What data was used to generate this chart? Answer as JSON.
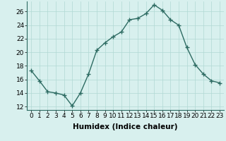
{
  "x": [
    0,
    1,
    2,
    3,
    4,
    5,
    6,
    7,
    8,
    9,
    10,
    11,
    12,
    13,
    14,
    15,
    16,
    17,
    18,
    19,
    20,
    21,
    22,
    23
  ],
  "y": [
    17.3,
    15.8,
    14.2,
    14.0,
    13.7,
    12.1,
    14.0,
    16.8,
    20.3,
    21.4,
    22.3,
    23.0,
    24.8,
    25.0,
    25.7,
    27.0,
    26.2,
    24.8,
    24.0,
    20.7,
    18.2,
    16.8,
    15.8,
    15.5
  ],
  "line_color": "#2d6b62",
  "marker": "+",
  "marker_size": 4,
  "bg_color": "#d8f0ee",
  "grid_color": "#b0d8d4",
  "xlabel": "Humidex (Indice chaleur)",
  "ylim": [
    11.5,
    27.5
  ],
  "xlim": [
    -0.5,
    23.5
  ],
  "yticks": [
    12,
    14,
    16,
    18,
    20,
    22,
    24,
    26
  ],
  "xticks": [
    0,
    1,
    2,
    3,
    4,
    5,
    6,
    7,
    8,
    9,
    10,
    11,
    12,
    13,
    14,
    15,
    16,
    17,
    18,
    19,
    20,
    21,
    22,
    23
  ],
  "xlabel_fontsize": 7.5,
  "tick_fontsize": 6.5,
  "line_width": 1.0
}
